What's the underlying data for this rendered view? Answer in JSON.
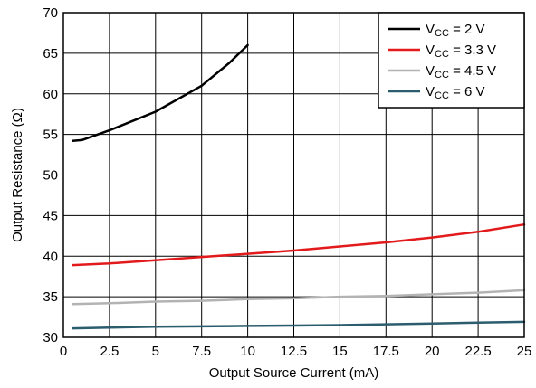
{
  "chart_data": {
    "type": "line",
    "title": "",
    "xlabel": "Output Source Current (mA)",
    "ylabel": "Output Resistance (Ω)",
    "xlim": [
      0,
      25
    ],
    "ylim": [
      30,
      70
    ],
    "xticks": [
      "0",
      "2.5",
      "5",
      "7.5",
      "10",
      "12.5",
      "15",
      "17.5",
      "20",
      "22.5",
      "25"
    ],
    "yticks": [
      "30",
      "35",
      "40",
      "45",
      "50",
      "55",
      "60",
      "65",
      "70"
    ],
    "grid": true,
    "legend_position": "top-right",
    "series": [
      {
        "name": "VCC = 2 V",
        "label_main": "V",
        "label_sub": "CC",
        "label_rest": " = 2 V",
        "color": "#000000",
        "x": [
          0.5,
          1.0,
          2.5,
          5.0,
          7.5,
          9.0,
          10.0
        ],
        "y": [
          54.2,
          54.3,
          55.5,
          57.8,
          61.0,
          63.8,
          66.0
        ]
      },
      {
        "name": "VCC = 3.3 V",
        "label_main": "V",
        "label_sub": "CC",
        "label_rest": " = 3.3 V",
        "color": "#e31a1c",
        "x": [
          0.5,
          2.5,
          5.0,
          7.5,
          10.0,
          12.5,
          15.0,
          17.5,
          20.0,
          22.5,
          25.0
        ],
        "y": [
          38.9,
          39.1,
          39.5,
          39.9,
          40.3,
          40.7,
          41.2,
          41.7,
          42.3,
          43.0,
          43.9
        ]
      },
      {
        "name": "VCC = 4.5 V",
        "label_main": "V",
        "label_sub": "CC",
        "label_rest": " = 4.5 V",
        "color": "#b3b3b3",
        "x": [
          0.5,
          2.5,
          5.0,
          7.5,
          10.0,
          12.5,
          15.0,
          17.5,
          20.0,
          22.5,
          25.0
        ],
        "y": [
          34.1,
          34.2,
          34.4,
          34.5,
          34.7,
          34.8,
          35.0,
          35.1,
          35.3,
          35.5,
          35.8
        ]
      },
      {
        "name": "VCC = 6 V",
        "label_main": "V",
        "label_sub": "CC",
        "label_rest": " = 6 V",
        "color": "#2b5d6e",
        "x": [
          0.5,
          2.5,
          5.0,
          7.5,
          10.0,
          12.5,
          15.0,
          17.5,
          20.0,
          22.5,
          25.0
        ],
        "y": [
          31.1,
          31.2,
          31.3,
          31.35,
          31.4,
          31.45,
          31.5,
          31.6,
          31.7,
          31.8,
          31.9
        ]
      }
    ]
  }
}
